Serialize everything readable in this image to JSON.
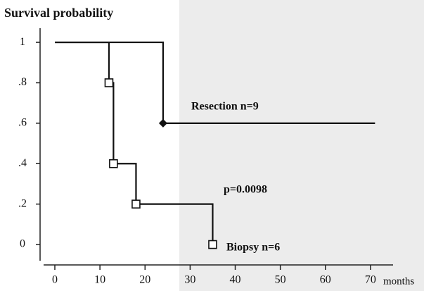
{
  "chart_data": {
    "type": "line",
    "drawstyle": "steps-post",
    "title": "Survival probability",
    "x_label": "months",
    "xlim": [
      0,
      75
    ],
    "xticks": [
      0,
      10,
      20,
      30,
      40,
      50,
      60,
      70
    ],
    "ylim": [
      -0.08,
      1.07
    ],
    "yticks": [
      0,
      {
        "value": 0.2,
        "label": ".2"
      },
      {
        "value": 0.4,
        "label": ".4"
      },
      {
        "value": 0.6,
        "label": ".6"
      },
      {
        "value": 0.8,
        "label": ".8"
      },
      1
    ],
    "series": [
      {
        "name": "Resection n=9",
        "color": "#111111",
        "marker": "diamond",
        "x": [
          0,
          24,
          71
        ],
        "values": [
          1,
          0.6,
          0.6
        ]
      },
      {
        "name": "Biopsy n=6",
        "color": "#111111",
        "marker": "square",
        "x": [
          0,
          12,
          13,
          18,
          35
        ],
        "values": [
          1,
          0.8,
          0.4,
          0.2,
          0
        ]
      }
    ],
    "annotations": [
      "p=0.0098"
    ]
  }
}
